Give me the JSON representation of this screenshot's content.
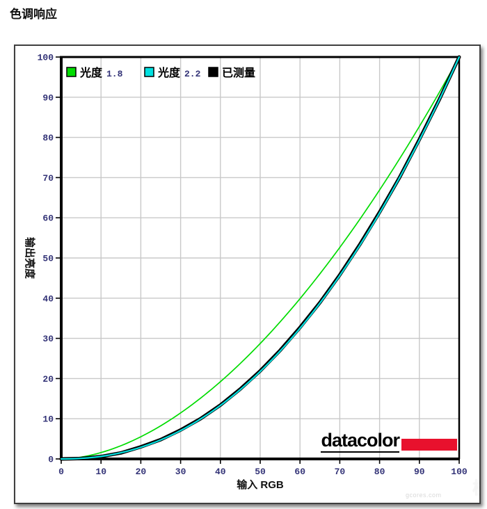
{
  "page": {
    "title": "色调响应"
  },
  "branding": {
    "logo_text": "datacolor",
    "logo_red": "#e8112d"
  },
  "watermark": {
    "text": "gcores.com",
    "glyph": "核"
  },
  "chart_data": {
    "type": "line",
    "title": "色调响应",
    "xlabel": "输入 RGB",
    "ylabel": "输出亮度",
    "xlim": [
      0,
      100
    ],
    "ylim": [
      0,
      100
    ],
    "xticks": [
      0,
      10,
      20,
      30,
      40,
      50,
      60,
      70,
      80,
      90,
      100
    ],
    "yticks": [
      0,
      10,
      20,
      30,
      40,
      50,
      60,
      70,
      80,
      90,
      100
    ],
    "grid": true,
    "legend_position": "top-left-inside",
    "x": [
      0,
      5,
      10,
      15,
      20,
      25,
      30,
      35,
      40,
      45,
      50,
      55,
      60,
      65,
      70,
      75,
      80,
      85,
      90,
      95,
      100
    ],
    "series": [
      {
        "name": "光度 1.8",
        "legend_label": "光度",
        "legend_value": "1.8",
        "color": "#00dc00",
        "gamma": 1.8,
        "line_width": 1.7,
        "values": [
          0,
          0.5,
          1.6,
          3.3,
          5.5,
          8.3,
          11.5,
          15.1,
          19.2,
          23.8,
          28.7,
          34.1,
          39.9,
          46.1,
          52.6,
          59.6,
          66.9,
          74.6,
          82.7,
          91.2,
          100
        ]
      },
      {
        "name": "光度 2.2",
        "legend_label": "光度",
        "legend_value": "2.2",
        "color": "#00e0e0",
        "gamma": 2.2,
        "line_width": 2.2,
        "values": [
          0,
          0.1,
          0.6,
          1.5,
          2.9,
          4.7,
          7.1,
          9.9,
          13.3,
          17.3,
          21.8,
          26.8,
          32.5,
          38.8,
          45.6,
          53.1,
          61.2,
          69.9,
          79.3,
          89.3,
          100
        ]
      },
      {
        "name": "已测量",
        "legend_label": "已测量",
        "legend_value": "",
        "color": "#000000",
        "line_width": 5,
        "values": [
          0,
          0.1,
          0.6,
          1.5,
          3.0,
          4.8,
          7.2,
          10.0,
          13.4,
          17.4,
          21.9,
          27.0,
          32.7,
          38.9,
          45.8,
          53.3,
          61.4,
          70.0,
          79.5,
          89.4,
          100
        ]
      }
    ],
    "colors": {
      "grid": "#c8c8c8",
      "axis": "#000000",
      "tick_label": "#333377",
      "legend_number": "#333377",
      "axis_label": "#111111"
    }
  }
}
